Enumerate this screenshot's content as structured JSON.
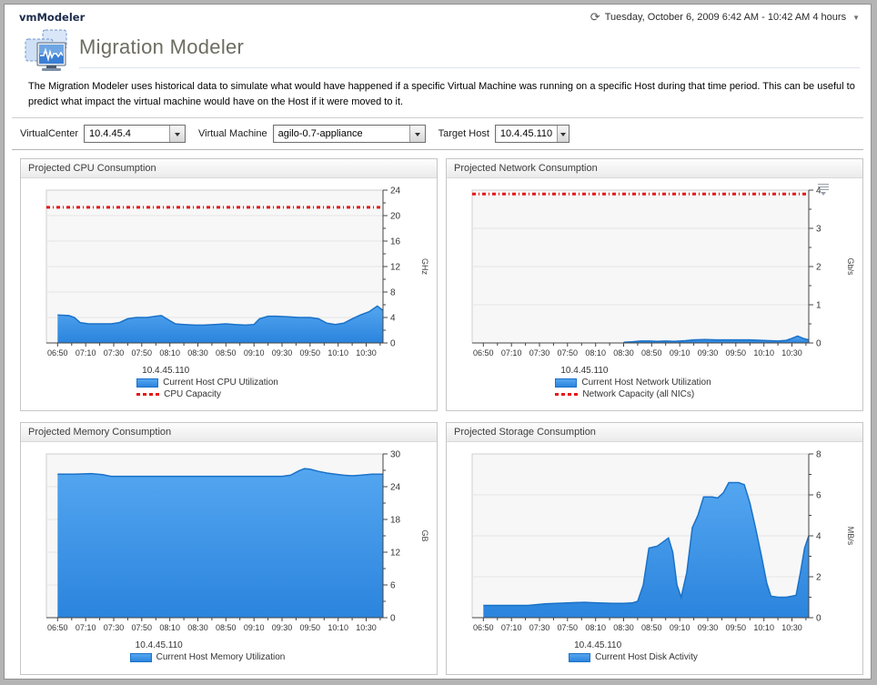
{
  "window": {
    "title": "vmModeler",
    "date_range": "Tuesday, October 6, 2009 6:42 AM - 10:42 AM 4 hours"
  },
  "icons": {
    "clock": "⟳",
    "dropdown": "▼"
  },
  "header": {
    "title": "Migration Modeler",
    "description": "The Migration Modeler uses historical data to simulate what would have happened if a specific Virtual Machine was running on a specific Host during that time period. This can be useful to predict what impact the virtual machine would have on the Host if it were moved to it."
  },
  "filters": {
    "virtualcenter_label": "VirtualCenter",
    "virtualcenter_value": "10.4.45.4",
    "vm_label": "Virtual Machine",
    "vm_value": "agilo-0.7-appliance",
    "target_label": "Target Host",
    "target_value": "10.4.45.110"
  },
  "colors": {
    "series_blue": "#3e96ec",
    "series_blue_stroke": "#1b72c8",
    "capacity_red": "#e81616",
    "accent_navy": "#1c2b4a"
  },
  "chart_data": [
    {
      "panel_title": "Projected CPU Consumption",
      "type": "area",
      "host": "10.4.45.110",
      "series_label": "Current Host CPU Utilization",
      "capacity_label": "CPU Capacity",
      "ylabel": "GHz",
      "ylim": [
        0,
        24
      ],
      "ytick_major": 4,
      "ytick_minor": 2,
      "capacity": 21.3,
      "x_start": "06:42",
      "x_end": "10:42",
      "xlabels": [
        "06:50",
        "07:10",
        "07:30",
        "07:50",
        "08:10",
        "08:30",
        "08:50",
        "09:10",
        "09:30",
        "09:50",
        "10:10",
        "10:30"
      ],
      "points": [
        [
          8,
          4.4
        ],
        [
          16,
          4.3
        ],
        [
          20,
          4.0
        ],
        [
          24,
          3.2
        ],
        [
          30,
          3.0
        ],
        [
          38,
          3.0
        ],
        [
          46,
          3.0
        ],
        [
          52,
          3.2
        ],
        [
          58,
          3.8
        ],
        [
          64,
          4.0
        ],
        [
          72,
          4.0
        ],
        [
          78,
          4.2
        ],
        [
          82,
          4.3
        ],
        [
          88,
          3.5
        ],
        [
          92,
          3.0
        ],
        [
          98,
          2.9
        ],
        [
          106,
          2.8
        ],
        [
          112,
          2.8
        ],
        [
          120,
          2.9
        ],
        [
          128,
          3.0
        ],
        [
          134,
          2.9
        ],
        [
          142,
          2.8
        ],
        [
          148,
          2.9
        ],
        [
          152,
          3.8
        ],
        [
          158,
          4.2
        ],
        [
          164,
          4.2
        ],
        [
          172,
          4.1
        ],
        [
          180,
          4.0
        ],
        [
          188,
          4.0
        ],
        [
          194,
          3.8
        ],
        [
          200,
          3.1
        ],
        [
          206,
          2.9
        ],
        [
          212,
          3.1
        ],
        [
          218,
          3.8
        ],
        [
          224,
          4.4
        ],
        [
          230,
          4.9
        ],
        [
          236,
          5.8
        ],
        [
          240,
          5.1
        ]
      ]
    },
    {
      "panel_title": "Projected Network Consumption",
      "type": "area",
      "host": "10.4.45.110",
      "series_label": "Current Host Network Utilization",
      "capacity_label": "Network Capacity (all NICs)",
      "ylabel": "Gb/s",
      "ylim": [
        0,
        4
      ],
      "ytick_major": 1,
      "ytick_minor": 0.5,
      "capacity": 3.9,
      "x_start": "06:42",
      "x_end": "10:42",
      "xlabels": [
        "06:50",
        "07:10",
        "07:30",
        "07:50",
        "08:10",
        "08:30",
        "08:50",
        "09:10",
        "09:30",
        "09:50",
        "10:10",
        "10:30"
      ],
      "points": [
        [
          108,
          0.02
        ],
        [
          114,
          0.03
        ],
        [
          120,
          0.05
        ],
        [
          126,
          0.05
        ],
        [
          132,
          0.04
        ],
        [
          138,
          0.05
        ],
        [
          144,
          0.04
        ],
        [
          148,
          0.05
        ],
        [
          152,
          0.06
        ],
        [
          158,
          0.08
        ],
        [
          166,
          0.09
        ],
        [
          174,
          0.08
        ],
        [
          182,
          0.08
        ],
        [
          190,
          0.08
        ],
        [
          198,
          0.08
        ],
        [
          206,
          0.07
        ],
        [
          212,
          0.06
        ],
        [
          218,
          0.05
        ],
        [
          224,
          0.07
        ],
        [
          228,
          0.12
        ],
        [
          232,
          0.18
        ],
        [
          236,
          0.12
        ],
        [
          240,
          0.08
        ]
      ]
    },
    {
      "panel_title": "Projected Memory Consumption",
      "type": "area",
      "host": "10.4.45.110",
      "series_label": "Current Host Memory Utilization",
      "capacity_label": null,
      "ylabel": "GB",
      "ylim": [
        0,
        30
      ],
      "ytick_major": 6,
      "ytick_minor": 3,
      "capacity": null,
      "x_start": "06:42",
      "x_end": "10:42",
      "xlabels": [
        "06:50",
        "07:10",
        "07:30",
        "07:50",
        "08:10",
        "08:30",
        "08:50",
        "09:10",
        "09:30",
        "09:50",
        "10:10",
        "10:30"
      ],
      "points": [
        [
          8,
          26.3
        ],
        [
          20,
          26.3
        ],
        [
          32,
          26.4
        ],
        [
          40,
          26.2
        ],
        [
          46,
          25.9
        ],
        [
          60,
          25.9
        ],
        [
          80,
          25.9
        ],
        [
          100,
          25.9
        ],
        [
          120,
          25.9
        ],
        [
          140,
          25.9
        ],
        [
          160,
          25.9
        ],
        [
          168,
          25.9
        ],
        [
          174,
          26.1
        ],
        [
          180,
          26.9
        ],
        [
          184,
          27.3
        ],
        [
          188,
          27.2
        ],
        [
          194,
          26.8
        ],
        [
          200,
          26.5
        ],
        [
          206,
          26.3
        ],
        [
          212,
          26.1
        ],
        [
          218,
          26.0
        ],
        [
          224,
          26.1
        ],
        [
          232,
          26.3
        ],
        [
          240,
          26.3
        ]
      ]
    },
    {
      "panel_title": "Projected Storage Consumption",
      "type": "area",
      "host": "10.4.45.110",
      "series_label": "Current Host Disk Activity",
      "capacity_label": null,
      "ylabel": "MB/s",
      "ylim": [
        0,
        8
      ],
      "ytick_major": 2,
      "ytick_minor": 1,
      "capacity": null,
      "x_start": "06:42",
      "x_end": "10:42",
      "xlabels": [
        "06:50",
        "07:10",
        "07:30",
        "07:50",
        "08:10",
        "08:30",
        "08:50",
        "09:10",
        "09:30",
        "09:50",
        "10:10",
        "10:30"
      ],
      "points": [
        [
          8,
          0.6
        ],
        [
          24,
          0.6
        ],
        [
          40,
          0.6
        ],
        [
          52,
          0.68
        ],
        [
          60,
          0.7
        ],
        [
          70,
          0.73
        ],
        [
          80,
          0.75
        ],
        [
          90,
          0.72
        ],
        [
          100,
          0.7
        ],
        [
          108,
          0.7
        ],
        [
          114,
          0.72
        ],
        [
          118,
          0.8
        ],
        [
          122,
          1.6
        ],
        [
          126,
          3.4
        ],
        [
          132,
          3.5
        ],
        [
          136,
          3.7
        ],
        [
          140,
          3.9
        ],
        [
          143,
          3.2
        ],
        [
          146,
          1.6
        ],
        [
          149,
          1.0
        ],
        [
          153,
          2.2
        ],
        [
          157,
          4.4
        ],
        [
          161,
          5.0
        ],
        [
          165,
          5.9
        ],
        [
          171,
          5.9
        ],
        [
          175,
          5.85
        ],
        [
          179,
          6.1
        ],
        [
          183,
          6.6
        ],
        [
          190,
          6.6
        ],
        [
          194,
          6.5
        ],
        [
          198,
          5.6
        ],
        [
          202,
          4.4
        ],
        [
          206,
          3.1
        ],
        [
          210,
          1.7
        ],
        [
          213,
          1.05
        ],
        [
          218,
          1.0
        ],
        [
          224,
          1.0
        ],
        [
          228,
          1.05
        ],
        [
          231,
          1.1
        ],
        [
          234,
          2.2
        ],
        [
          237,
          3.4
        ],
        [
          240,
          4.0
        ]
      ]
    }
  ]
}
